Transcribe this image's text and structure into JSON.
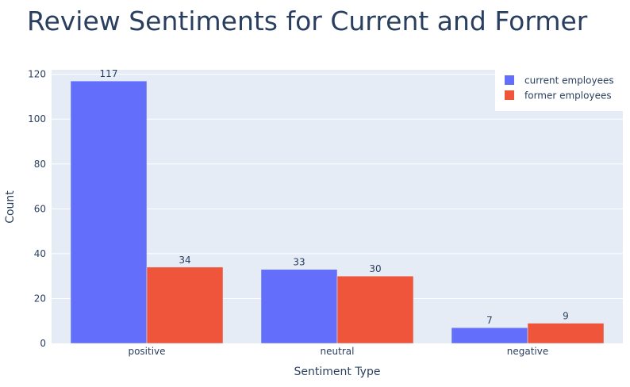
{
  "chart_data": {
    "type": "bar",
    "title": "Review Sentiments for Current and Former",
    "xlabel": "Sentiment Type",
    "ylabel": "Count",
    "categories": [
      "positive",
      "neutral",
      "negative"
    ],
    "series": [
      {
        "name": "current employees",
        "values": [
          117,
          33,
          7
        ],
        "color": "#636efa"
      },
      {
        "name": "former employees",
        "values": [
          34,
          30,
          9
        ],
        "color": "#ef553b"
      }
    ],
    "ylim": [
      0,
      122
    ],
    "yticks": [
      0,
      20,
      40,
      60,
      80,
      100,
      120
    ],
    "grid": true,
    "legend": "top-right",
    "plot_bg": "#e5ecf6"
  }
}
